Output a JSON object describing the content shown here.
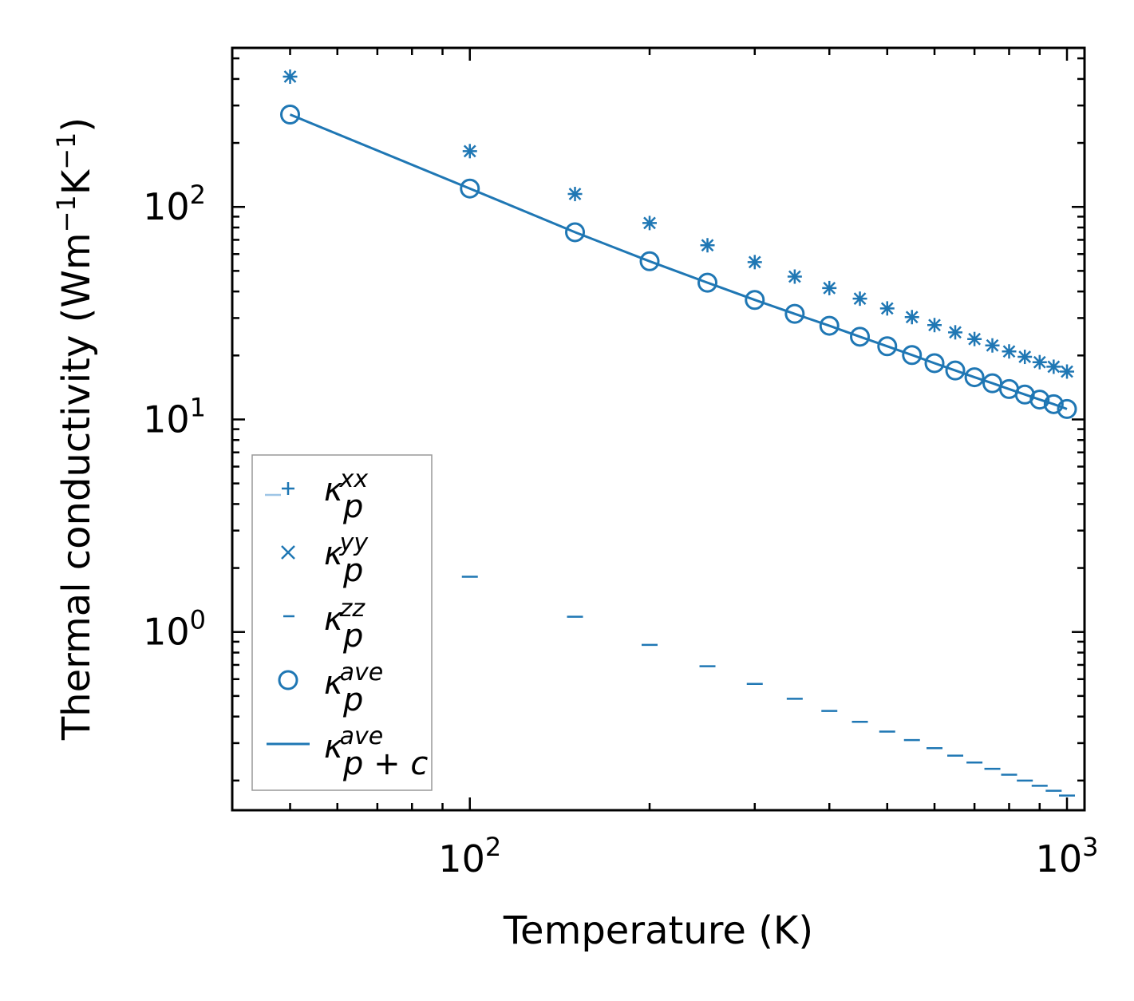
{
  "chart_data": {
    "type": "scatter",
    "xscale": "log",
    "yscale": "log",
    "xlabel": "Temperature (K)",
    "ylabel_parts": [
      "Thermal conductivity (Wm",
      "−1",
      "K",
      "−1",
      ")"
    ],
    "xlim": [
      40,
      1070
    ],
    "ylim": [
      0.145,
      560
    ],
    "x_major_ticks": [
      {
        "value": 100,
        "base": "10",
        "exp": "2"
      },
      {
        "value": 1000,
        "base": "10",
        "exp": "3"
      }
    ],
    "y_major_ticks": [
      {
        "value": 1,
        "base": "10",
        "exp": "0"
      },
      {
        "value": 10,
        "base": "10",
        "exp": "1"
      },
      {
        "value": 100,
        "base": "10",
        "exp": "2"
      }
    ],
    "color": "#1f77b4",
    "x": [
      50,
      100,
      150,
      200,
      250,
      300,
      350,
      400,
      450,
      500,
      550,
      600,
      650,
      700,
      750,
      800,
      850,
      900,
      950,
      1000
    ],
    "series": [
      {
        "name": "kappa_p_xx",
        "symbol": "κ",
        "sub": "p",
        "sup": "xx",
        "marker": "plus",
        "values": [
          410,
          183,
          115,
          84,
          66,
          55,
          47,
          41.5,
          37,
          33.3,
          30.3,
          27.8,
          25.7,
          23.9,
          22.3,
          20.9,
          19.7,
          18.6,
          17.7,
          16.8
        ]
      },
      {
        "name": "kappa_p_yy",
        "symbol": "κ",
        "sub": "p",
        "sup": "yy",
        "marker": "x",
        "values": [
          410,
          183,
          115,
          84,
          66,
          55,
          47,
          41.5,
          37,
          33.3,
          30.3,
          27.8,
          25.7,
          23.9,
          22.3,
          20.9,
          19.7,
          18.6,
          17.7,
          16.8
        ]
      },
      {
        "name": "kappa_p_zz",
        "symbol": "κ",
        "sub": "p",
        "sup": "zz",
        "marker": "hline",
        "values": [
          null,
          1.82,
          1.18,
          0.87,
          0.69,
          0.57,
          0.485,
          0.425,
          0.378,
          0.34,
          0.31,
          0.284,
          0.262,
          0.243,
          0.227,
          0.213,
          0.2,
          0.189,
          0.179,
          0.17
        ]
      },
      {
        "name": "kappa_p_ave",
        "symbol": "κ",
        "sub": "p",
        "sup": "ave",
        "marker": "circle",
        "values": [
          272,
          122,
          76,
          55.5,
          44,
          36.5,
          31.4,
          27.6,
          24.5,
          22.1,
          20.1,
          18.4,
          17.0,
          15.8,
          14.8,
          13.9,
          13.1,
          12.4,
          11.8,
          11.2
        ]
      },
      {
        "name": "kappa_p_plus_c_ave",
        "symbol": "κ",
        "sub": "p + c",
        "sup": "ave",
        "marker": "line",
        "values": [
          272,
          122,
          76,
          55.5,
          44,
          36.5,
          31.4,
          27.6,
          24.5,
          22.1,
          20.1,
          18.4,
          17.0,
          15.8,
          14.8,
          13.9,
          13.1,
          12.4,
          11.8,
          11.2
        ]
      }
    ],
    "legend_position": "lower-left"
  }
}
